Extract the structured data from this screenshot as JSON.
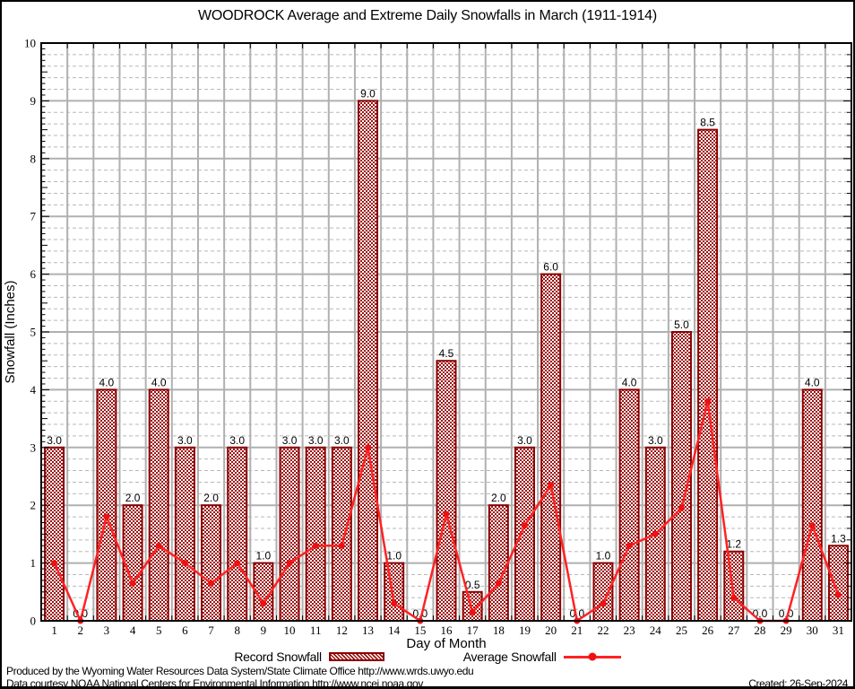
{
  "title": "WOODROCK Average and Extreme Daily Snowfalls in March (1911-1914)",
  "legend": {
    "record_label": "Record Snowfall",
    "average_label": "Average Snowfall"
  },
  "footer": {
    "line1": "Produced by the Wyoming Water Resources Data System/State Climate Office http://www.wrds.uwyo.edu",
    "line2": "Data courtesy NOAA National Centers for Environmental Information http://www.ncei.noaa.gov",
    "created": "Created: 26-Sep-2024"
  },
  "colors": {
    "bar_border": "#8b0000",
    "bar_hatch": "#9c1212",
    "line": "#ff2222",
    "marker": "#ee1111",
    "grid_major": "#b0b0b0",
    "grid_minor": "#b8b8b8",
    "frame": "#000000",
    "text": "#000000"
  },
  "chart_data": {
    "type": "bar",
    "title": "WOODROCK Average and Extreme Daily Snowfalls in March (1911-1914)",
    "xlabel": "Day of Month",
    "ylabel": "Snowfall (Inches)",
    "ylim": [
      0,
      10
    ],
    "y_major_step": 1,
    "y_minor_step": 0.2,
    "grid": true,
    "legend_position": "bottom",
    "categories": [
      1,
      2,
      3,
      4,
      5,
      6,
      7,
      8,
      9,
      10,
      11,
      12,
      13,
      14,
      15,
      16,
      17,
      18,
      19,
      20,
      21,
      22,
      23,
      24,
      25,
      26,
      27,
      28,
      29,
      30,
      31
    ],
    "series": [
      {
        "name": "Record Snowfall",
        "type": "bar",
        "values": [
          3.0,
          0.0,
          4.0,
          2.0,
          4.0,
          3.0,
          2.0,
          3.0,
          1.0,
          3.0,
          3.0,
          3.0,
          9.0,
          1.0,
          0.0,
          4.5,
          0.5,
          2.0,
          3.0,
          6.0,
          0.0,
          1.0,
          4.0,
          3.0,
          5.0,
          8.5,
          1.2,
          0.0,
          0.0,
          4.0,
          1.3
        ],
        "labels": [
          "3.0",
          "0.0",
          "4.0",
          "2.0",
          "4.0",
          "3.0",
          "2.0",
          "3.0",
          "1.0",
          "3.0",
          "3.0",
          "3.0",
          "9.0",
          "1.0",
          "0.0",
          "4.5",
          "0.5",
          "2.0",
          "3.0",
          "6.0",
          "0.0",
          "1.0",
          "4.0",
          "3.0",
          "5.0",
          "8.5",
          "1.2",
          "0.0",
          "0.0",
          "4.0",
          "1.3"
        ]
      },
      {
        "name": "Average Snowfall",
        "type": "line",
        "values": [
          1.0,
          0.0,
          1.8,
          0.65,
          1.3,
          1.0,
          0.65,
          1.0,
          0.3,
          1.0,
          1.3,
          1.3,
          3.0,
          0.3,
          0.0,
          1.85,
          0.15,
          0.65,
          1.65,
          2.35,
          0.0,
          0.3,
          1.3,
          1.5,
          1.95,
          3.8,
          0.4,
          0.0,
          0.0,
          1.65,
          0.45
        ]
      }
    ]
  }
}
